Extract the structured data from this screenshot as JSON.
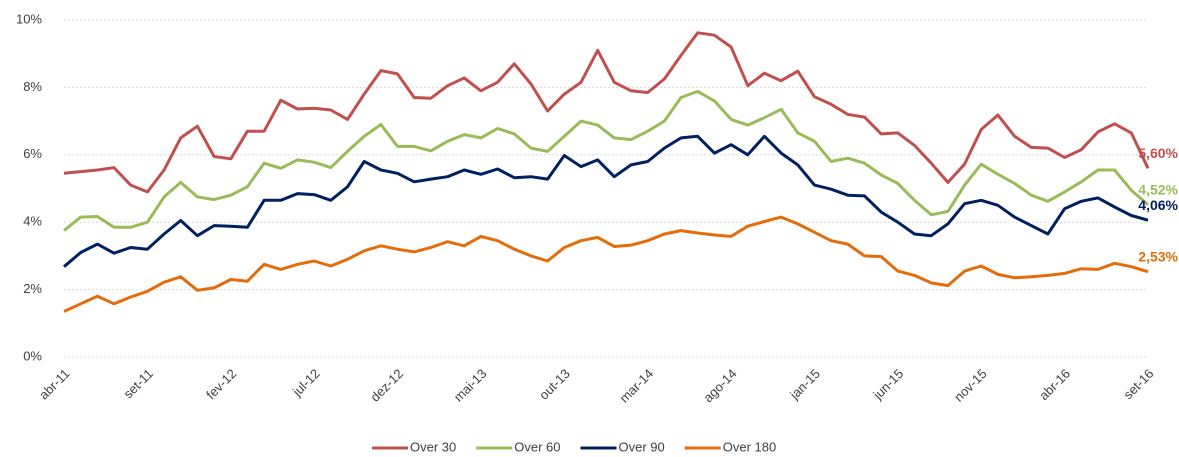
{
  "chart_data": {
    "type": "line",
    "categories": [
      "abr-11",
      null,
      null,
      null,
      null,
      "set-11",
      null,
      null,
      null,
      null,
      "fev-12",
      null,
      null,
      null,
      null,
      "jul-12",
      null,
      null,
      null,
      null,
      "dez-12",
      null,
      null,
      null,
      null,
      "mai-13",
      null,
      null,
      null,
      null,
      "out-13",
      null,
      null,
      null,
      null,
      "mar-14",
      null,
      null,
      null,
      null,
      "ago-14",
      null,
      null,
      null,
      null,
      "jan-15",
      null,
      null,
      null,
      null,
      "jun-15",
      null,
      null,
      null,
      null,
      "nov-15",
      null,
      null,
      null,
      null,
      "abr-16",
      null,
      null,
      null,
      null,
      "set-16"
    ],
    "series": [
      {
        "name": "Over 30",
        "color": "#c0504d",
        "values": [
          5.45,
          5.5,
          5.55,
          5.62,
          5.1,
          4.9,
          5.55,
          6.5,
          6.85,
          5.95,
          5.88,
          6.7,
          6.7,
          7.62,
          7.36,
          7.38,
          7.33,
          7.05,
          7.8,
          8.5,
          8.4,
          7.7,
          7.68,
          8.05,
          8.28,
          7.9,
          8.15,
          8.7,
          8.1,
          7.3,
          7.8,
          8.15,
          9.1,
          8.15,
          7.9,
          7.85,
          8.25,
          8.95,
          9.62,
          9.55,
          9.2,
          8.05,
          8.42,
          8.2,
          8.48,
          7.72,
          7.5,
          7.2,
          7.12,
          6.62,
          6.65,
          6.28,
          5.75,
          5.18,
          5.72,
          6.75,
          7.18,
          6.55,
          6.22,
          6.2,
          5.92,
          6.15,
          6.68,
          6.92,
          6.65,
          5.6
        ],
        "value_labels": [
          null,
          null,
          null,
          null,
          null,
          null,
          null,
          null,
          null,
          null,
          null,
          null,
          null,
          null,
          null,
          null,
          null,
          null,
          null,
          null,
          null,
          null,
          null,
          null,
          null,
          null,
          null,
          null,
          null,
          null,
          null,
          null,
          null,
          null,
          null,
          null,
          null,
          null,
          null,
          null,
          null,
          null,
          null,
          null,
          null,
          null,
          null,
          null,
          null,
          null,
          null,
          null,
          null,
          null,
          null,
          null,
          null,
          null,
          null,
          null,
          null,
          null,
          null,
          null,
          null,
          "5,60%"
        ]
      },
      {
        "name": "Over 60",
        "color": "#9bbb59",
        "values": [
          3.75,
          4.15,
          4.17,
          3.85,
          3.85,
          4.0,
          4.75,
          5.18,
          4.75,
          4.67,
          4.8,
          5.05,
          5.75,
          5.6,
          5.85,
          5.78,
          5.62,
          6.1,
          6.55,
          6.9,
          6.25,
          6.25,
          6.12,
          6.4,
          6.6,
          6.5,
          6.78,
          6.62,
          6.2,
          6.1,
          6.55,
          7.0,
          6.88,
          6.5,
          6.45,
          6.7,
          7.0,
          7.7,
          7.88,
          7.6,
          7.05,
          6.88,
          7.1,
          7.35,
          6.65,
          6.4,
          5.8,
          5.9,
          5.75,
          5.4,
          5.15,
          4.65,
          4.22,
          4.32,
          5.1,
          5.72,
          5.42,
          5.15,
          4.8,
          4.62,
          4.9,
          5.2,
          5.55,
          5.55,
          4.95,
          4.52
        ],
        "value_labels": [
          null,
          null,
          null,
          null,
          null,
          null,
          null,
          null,
          null,
          null,
          null,
          null,
          null,
          null,
          null,
          null,
          null,
          null,
          null,
          null,
          null,
          null,
          null,
          null,
          null,
          null,
          null,
          null,
          null,
          null,
          null,
          null,
          null,
          null,
          null,
          null,
          null,
          null,
          null,
          null,
          null,
          null,
          null,
          null,
          null,
          null,
          null,
          null,
          null,
          null,
          null,
          null,
          null,
          null,
          null,
          null,
          null,
          null,
          null,
          null,
          null,
          null,
          null,
          null,
          null,
          "4,52%"
        ]
      },
      {
        "name": "Over 90",
        "color": "#002060",
        "values": [
          2.68,
          3.1,
          3.35,
          3.08,
          3.25,
          3.2,
          3.65,
          4.05,
          3.6,
          3.9,
          3.88,
          3.85,
          4.65,
          4.65,
          4.85,
          4.82,
          4.65,
          5.05,
          5.8,
          5.55,
          5.45,
          5.2,
          5.28,
          5.35,
          5.55,
          5.42,
          5.58,
          5.32,
          5.35,
          5.28,
          5.98,
          5.65,
          5.85,
          5.35,
          5.7,
          5.8,
          6.2,
          6.5,
          6.55,
          6.05,
          6.3,
          6.0,
          6.55,
          6.05,
          5.7,
          5.1,
          4.98,
          4.8,
          4.78,
          4.3,
          4.0,
          3.65,
          3.6,
          3.95,
          4.55,
          4.65,
          4.5,
          4.15,
          3.9,
          3.65,
          4.4,
          4.62,
          4.72,
          4.45,
          4.2,
          4.06
        ],
        "value_labels": [
          null,
          null,
          null,
          null,
          null,
          null,
          null,
          null,
          null,
          null,
          null,
          null,
          null,
          null,
          null,
          null,
          null,
          null,
          null,
          null,
          null,
          null,
          null,
          null,
          null,
          null,
          null,
          null,
          null,
          null,
          null,
          null,
          null,
          null,
          null,
          null,
          null,
          null,
          null,
          null,
          null,
          null,
          null,
          null,
          null,
          null,
          null,
          null,
          null,
          null,
          null,
          null,
          null,
          null,
          null,
          null,
          null,
          null,
          null,
          null,
          null,
          null,
          null,
          null,
          null,
          "4,06%"
        ]
      },
      {
        "name": "Over 180",
        "color": "#e46c0a",
        "values": [
          1.35,
          1.58,
          1.8,
          1.58,
          1.78,
          1.95,
          2.22,
          2.38,
          1.98,
          2.05,
          2.3,
          2.25,
          2.75,
          2.6,
          2.75,
          2.85,
          2.7,
          2.9,
          3.15,
          3.3,
          3.2,
          3.12,
          3.25,
          3.42,
          3.3,
          3.58,
          3.45,
          3.2,
          3.0,
          2.85,
          3.25,
          3.45,
          3.55,
          3.28,
          3.32,
          3.45,
          3.65,
          3.75,
          3.68,
          3.62,
          3.58,
          3.88,
          4.02,
          4.15,
          3.95,
          3.7,
          3.45,
          3.35,
          3.0,
          2.98,
          2.55,
          2.42,
          2.2,
          2.12,
          2.55,
          2.7,
          2.45,
          2.35,
          2.38,
          2.42,
          2.48,
          2.62,
          2.6,
          2.78,
          2.68,
          2.53
        ],
        "value_labels": [
          null,
          null,
          null,
          null,
          null,
          null,
          null,
          null,
          null,
          null,
          null,
          null,
          null,
          null,
          null,
          null,
          null,
          null,
          null,
          null,
          null,
          null,
          null,
          null,
          null,
          null,
          null,
          null,
          null,
          null,
          null,
          null,
          null,
          null,
          null,
          null,
          null,
          null,
          null,
          null,
          null,
          null,
          null,
          null,
          null,
          null,
          null,
          null,
          null,
          null,
          null,
          null,
          null,
          null,
          null,
          null,
          null,
          null,
          null,
          null,
          null,
          null,
          null,
          null,
          null,
          "2,53%"
        ]
      }
    ],
    "ylim": [
      0,
      10
    ],
    "yticks": [
      {
        "value": 0,
        "label": "0%"
      },
      {
        "value": 2,
        "label": "2%"
      },
      {
        "value": 4,
        "label": "4%"
      },
      {
        "value": 6,
        "label": "6%"
      },
      {
        "value": 8,
        "label": "8%"
      },
      {
        "value": 10,
        "label": "10%"
      }
    ],
    "grid": true,
    "legend": "bottom"
  }
}
